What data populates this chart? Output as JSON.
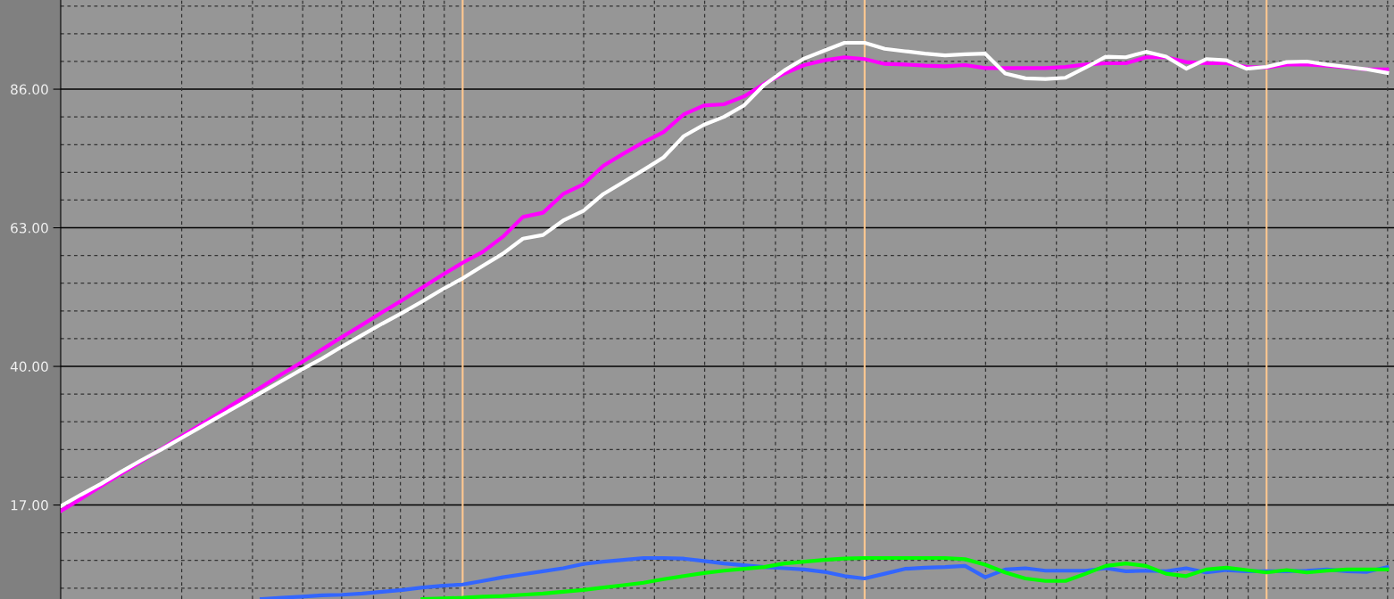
{
  "chart_data": {
    "type": "line",
    "categories": [
      null,
      null,
      null,
      null,
      null,
      null,
      null,
      null,
      null,
      null,
      null,
      null,
      null,
      null,
      null,
      null,
      null,
      null,
      null,
      null,
      null,
      null,
      null,
      null,
      null,
      null,
      null,
      null,
      null,
      null,
      null,
      null,
      null,
      null,
      null,
      null,
      null,
      null,
      null,
      null,
      null,
      null,
      null,
      null,
      null,
      null,
      null,
      null,
      null,
      null,
      null,
      null,
      null,
      null,
      null,
      null,
      null,
      null,
      null,
      null,
      null,
      null,
      null,
      null,
      null,
      null,
      null
    ],
    "series": [
      {
        "color": "#ff00ff",
        "values": [
          16.0,
          18.0,
          20.1,
          22.2,
          24.2,
          26.3,
          28.4,
          30.4,
          32.5,
          34.6,
          36.6,
          38.7,
          40.7,
          42.8,
          44.9,
          46.9,
          49.0,
          51.0,
          53.1,
          55.2,
          57.2,
          59.0,
          61.5,
          64.8,
          65.5,
          68.6,
          70.2,
          73.3,
          75.3,
          77.2,
          78.9,
          81.8,
          83.3,
          83.5,
          84.8,
          86.9,
          88.6,
          90.0,
          90.8,
          91.3,
          91.0,
          90.2,
          90.1,
          89.9,
          89.8,
          90.0,
          89.5,
          89.5,
          89.5,
          89.5,
          89.7,
          90.1,
          90.3,
          90.3,
          91.3,
          91.3,
          90.5,
          90.3,
          90.3,
          89.7,
          89.6,
          90.1,
          90.1,
          89.9,
          89.6,
          89.3,
          89.3
        ]
      },
      {
        "color": "#ffffff",
        "values": [
          16.8,
          18.7,
          20.5,
          22.5,
          24.4,
          26.2,
          28.1,
          30.0,
          31.9,
          33.8,
          35.7,
          37.6,
          39.5,
          41.3,
          43.3,
          45.2,
          47.1,
          48.9,
          50.8,
          52.8,
          54.6,
          56.7,
          58.7,
          61.2,
          61.8,
          64.2,
          65.8,
          68.6,
          70.6,
          72.6,
          74.7,
          78.2,
          80.1,
          81.4,
          83.3,
          86.7,
          89.1,
          91.1,
          92.4,
          93.7,
          93.7,
          92.7,
          92.3,
          91.9,
          91.6,
          91.8,
          91.9,
          88.6,
          87.8,
          87.7,
          87.9,
          89.6,
          91.4,
          91.3,
          92.2,
          91.4,
          89.4,
          91.0,
          90.8,
          89.4,
          89.7,
          90.5,
          90.6,
          90.1,
          89.7,
          89.3,
          88.7
        ]
      },
      {
        "color": "#3366ff",
        "values": [
          null,
          null,
          null,
          null,
          null,
          null,
          null,
          null,
          null,
          null,
          1.4,
          1.6,
          1.8,
          2.0,
          2.1,
          2.3,
          2.6,
          2.9,
          3.3,
          3.6,
          3.8,
          4.4,
          5.0,
          5.5,
          6.0,
          6.5,
          7.2,
          7.6,
          7.9,
          8.2,
          8.2,
          8.1,
          7.7,
          7.3,
          7.0,
          6.7,
          6.5,
          6.3,
          5.9,
          5.2,
          4.8,
          5.6,
          6.4,
          6.6,
          6.7,
          6.9,
          5.0,
          6.3,
          6.5,
          6.1,
          6.1,
          6.1,
          6.5,
          6.0,
          6.1,
          6.0,
          6.5,
          5.8,
          6.2,
          6.0,
          6.0,
          6.0,
          6.1,
          6.3,
          6.0,
          5.9,
          6.7
        ]
      },
      {
        "color": "#00ff00",
        "values": [
          null,
          null,
          null,
          null,
          null,
          null,
          null,
          null,
          null,
          null,
          null,
          null,
          null,
          null,
          null,
          null,
          null,
          null,
          1.4,
          1.5,
          1.6,
          1.8,
          1.9,
          2.1,
          2.3,
          2.6,
          2.9,
          3.3,
          3.7,
          4.1,
          4.7,
          5.2,
          5.7,
          6.1,
          6.4,
          6.7,
          7.3,
          7.6,
          7.9,
          8.1,
          8.2,
          8.2,
          8.2,
          8.2,
          8.2,
          8.0,
          7.1,
          5.8,
          4.8,
          4.4,
          4.4,
          5.6,
          6.9,
          7.3,
          6.9,
          5.6,
          5.2,
          6.3,
          6.6,
          6.2,
          5.8,
          6.2,
          5.8,
          6.1,
          6.3,
          6.3,
          6.3
        ]
      }
    ],
    "ylim": [
      1.4,
      100.8
    ],
    "yticks": [
      {
        "value": 3.2,
        "label": null
      },
      {
        "value": 7.8,
        "label": null
      },
      {
        "value": 12.4,
        "label": null
      },
      {
        "value": 17,
        "label": "17.00"
      },
      {
        "value": 21.6,
        "label": null
      },
      {
        "value": 26.2,
        "label": null
      },
      {
        "value": 30.8,
        "label": null
      },
      {
        "value": 35.4,
        "label": null
      },
      {
        "value": 40,
        "label": "40.00"
      },
      {
        "value": 44.6,
        "label": null
      },
      {
        "value": 49.2,
        "label": null
      },
      {
        "value": 53.8,
        "label": null
      },
      {
        "value": 58.4,
        "label": null
      },
      {
        "value": 63,
        "label": "63.00"
      },
      {
        "value": 67.6,
        "label": null
      },
      {
        "value": 72.2,
        "label": null
      },
      {
        "value": 76.8,
        "label": null
      },
      {
        "value": 81.4,
        "label": null
      },
      {
        "value": 86,
        "label": "86.00"
      },
      {
        "value": 90.6,
        "label": null
      },
      {
        "value": 95.2,
        "label": null
      },
      {
        "value": 99.8,
        "label": null
      }
    ],
    "grid": true,
    "tick_labels": "y",
    "marker": "none",
    "line_style": "solid"
  }
}
